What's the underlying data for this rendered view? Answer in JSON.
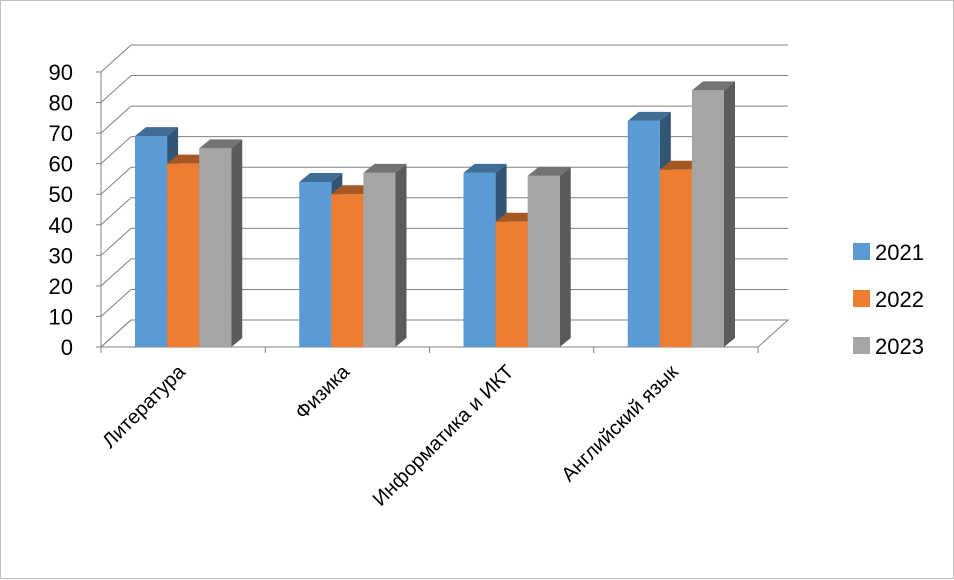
{
  "chart_data": {
    "type": "bar",
    "categories": [
      "Литература",
      "Физика",
      "Информатика и ИКТ",
      "Английский язык"
    ],
    "series": [
      {
        "name": "2021",
        "values": [
          69,
          54,
          57,
          74
        ],
        "color": "#5b9bd5"
      },
      {
        "name": "2022",
        "values": [
          60,
          50,
          41,
          58
        ],
        "color": "#ed7d31"
      },
      {
        "name": "2023",
        "values": [
          65,
          57,
          56,
          84
        ],
        "color": "#a5a5a5"
      }
    ],
    "title": "",
    "xlabel": "",
    "ylabel": "",
    "ylim": [
      0,
      90
    ],
    "yticks": [
      "0",
      "10",
      "20",
      "30",
      "40",
      "50",
      "60",
      "70",
      "80",
      "90"
    ],
    "grid": true,
    "legend": "right",
    "style": "3d-clustered-column"
  }
}
